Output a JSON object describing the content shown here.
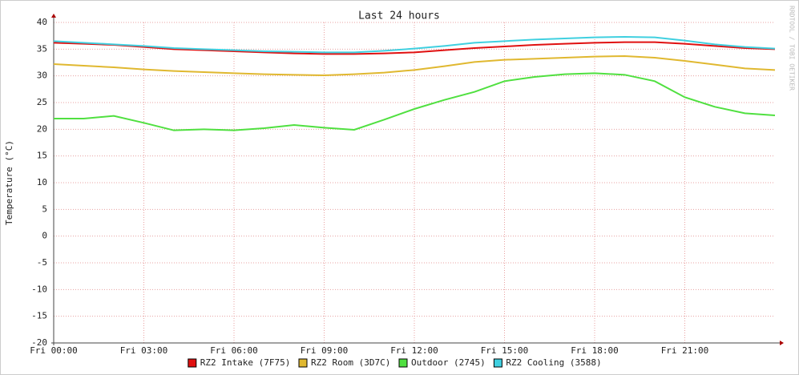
{
  "chart_data": {
    "type": "line",
    "title": "Last 24 hours",
    "y_label": "Temperature (°C)",
    "watermark": "RRDTOOL / TOBI OETIKER",
    "x": [
      0,
      1,
      2,
      3,
      4,
      5,
      6,
      7,
      8,
      9,
      10,
      11,
      12,
      13,
      14,
      15,
      16,
      17,
      18,
      19,
      20,
      21,
      22,
      23,
      24
    ],
    "xlim": [
      0,
      24
    ],
    "xticks": [
      {
        "value": 0,
        "label": "Fri 00:00"
      },
      {
        "value": 3,
        "label": "Fri 03:00"
      },
      {
        "value": 6,
        "label": "Fri 06:00"
      },
      {
        "value": 9,
        "label": "Fri 09:00"
      },
      {
        "value": 12,
        "label": "Fri 12:00"
      },
      {
        "value": 15,
        "label": "Fri 15:00"
      },
      {
        "value": 18,
        "label": "Fri 18:00"
      },
      {
        "value": 21,
        "label": "Fri 21:00"
      }
    ],
    "ylim": [
      -20,
      40
    ],
    "yticks": [
      -20,
      -15,
      -10,
      -5,
      0,
      5,
      10,
      15,
      20,
      25,
      30,
      35,
      40
    ],
    "grid": true,
    "series": [
      {
        "name": "RZ2 Intake (7F75)",
        "color": "#e01010",
        "values": [
          36.2,
          36,
          35.8,
          35.4,
          35,
          34.8,
          34.6,
          34.4,
          34.2,
          34.1,
          34.1,
          34.2,
          34.4,
          34.8,
          35.2,
          35.5,
          35.8,
          36,
          36.2,
          36.3,
          36.3,
          36,
          35.6,
          35.2,
          35
        ]
      },
      {
        "name": "RZ2 Room (3D7C)",
        "color": "#e0b830",
        "values": [
          32.2,
          31.9,
          31.6,
          31.2,
          30.9,
          30.7,
          30.5,
          30.3,
          30.2,
          30.1,
          30.3,
          30.6,
          31.1,
          31.8,
          32.6,
          33,
          33.2,
          33.4,
          33.6,
          33.7,
          33.4,
          32.8,
          32.1,
          31.4,
          31.1
        ]
      },
      {
        "name": "Outdoor (2745)",
        "color": "#50e040",
        "values": [
          22,
          22,
          22.5,
          21.2,
          19.8,
          20,
          19.8,
          20.2,
          20.8,
          20.3,
          19.9,
          21.8,
          23.8,
          25.5,
          27,
          29,
          29.8,
          30.3,
          30.5,
          30.2,
          29,
          26,
          24.2,
          23,
          22.6
        ]
      },
      {
        "name": "RZ2 Cooling (3588)",
        "color": "#40d0e0",
        "values": [
          36.5,
          36.2,
          35.9,
          35.6,
          35.2,
          35,
          34.8,
          34.6,
          34.5,
          34.4,
          34.4,
          34.7,
          35.1,
          35.6,
          36.2,
          36.5,
          36.8,
          37,
          37.2,
          37.3,
          37.2,
          36.6,
          35.9,
          35.4,
          35.1
        ]
      }
    ]
  }
}
